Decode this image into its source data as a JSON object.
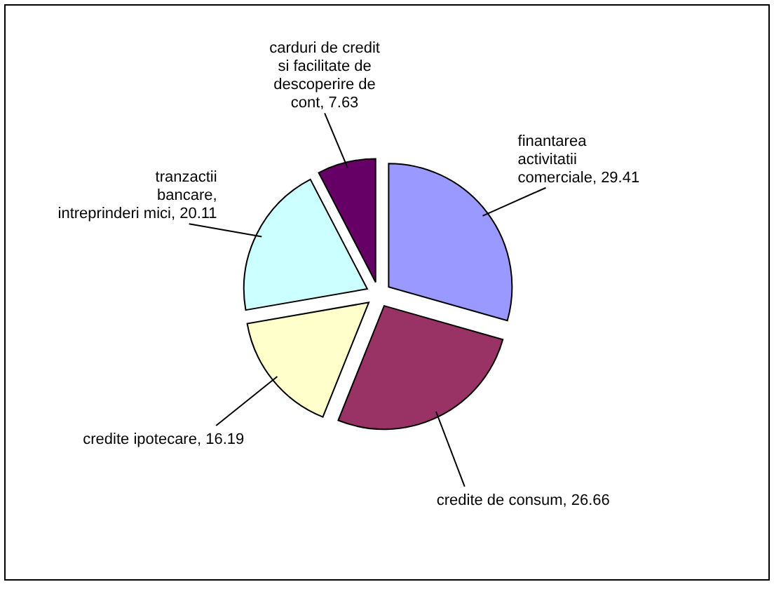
{
  "chart_data": {
    "type": "pie",
    "categories": [
      "finantarea activitatii comerciale",
      "credite de consum",
      "credite ipotecare",
      "tranzactii bancare, intreprinderi mici",
      "carduri de credit si facilitate de descoperire de cont"
    ],
    "values": [
      29.41,
      26.66,
      16.19,
      20.11,
      7.63
    ],
    "colors": [
      "#9999ff",
      "#993366",
      "#ffffcc",
      "#ccffff",
      "#660066"
    ],
    "value_labels": [
      ", 29.41",
      ", 26.66",
      ", 16.19",
      ", 20.11",
      ", 7.63"
    ]
  }
}
